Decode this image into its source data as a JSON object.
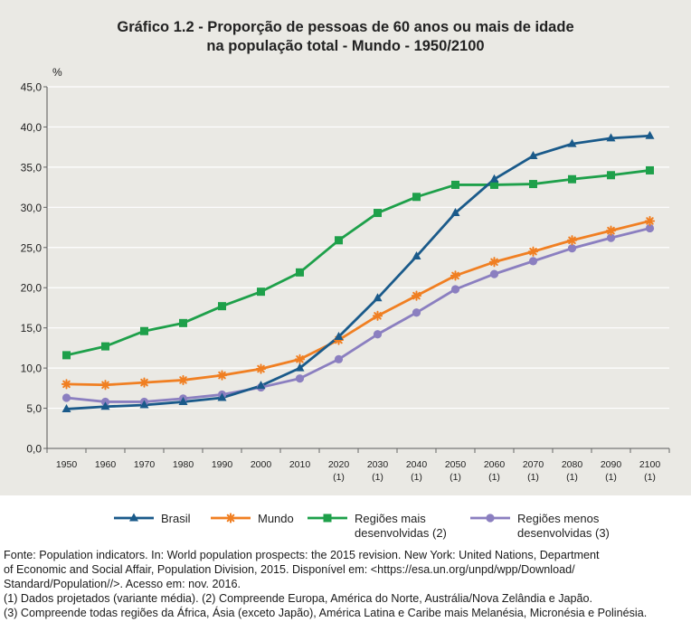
{
  "chart_data": {
    "type": "line",
    "title_lines": [
      "Gráfico 1.2 - Proporção de pessoas de 60 anos ou mais de idade",
      "na população total - Mundo - 1950/2100"
    ],
    "ylabel": "%",
    "ylim": [
      0,
      45
    ],
    "ytick_values": [
      0,
      5,
      10,
      15,
      20,
      25,
      30,
      35,
      40,
      45
    ],
    "ytick_labels": [
      "0,0",
      "5,0",
      "10,0",
      "15,0",
      "20,0",
      "25,0",
      "30,0",
      "35,0",
      "40,0",
      "45,0"
    ],
    "grid": true,
    "categories": [
      "1950",
      "1960",
      "1970",
      "1980",
      "1990",
      "2000",
      "2010",
      "2020",
      "2030",
      "2040",
      "2050",
      "2060",
      "2070",
      "2080",
      "2090",
      "2100"
    ],
    "category_footnotes": [
      "",
      "",
      "",
      "",
      "",
      "",
      "",
      "(1)",
      "(1)",
      "(1)",
      "(1)",
      "(1)",
      "(1)",
      "(1)",
      "(1)",
      "(1)"
    ],
    "series": [
      {
        "name": "Brasil",
        "marker": "triangle",
        "color": "#1a5a8a",
        "values": [
          4.9,
          5.2,
          5.4,
          5.8,
          6.3,
          7.8,
          10.0,
          13.9,
          18.7,
          23.9,
          29.3,
          33.5,
          36.4,
          37.9,
          38.6,
          38.9
        ]
      },
      {
        "name": "Mundo",
        "marker": "asterisk",
        "color": "#f07f22",
        "values": [
          8.0,
          7.9,
          8.2,
          8.5,
          9.1,
          9.9,
          11.1,
          13.5,
          16.5,
          19.0,
          21.5,
          23.2,
          24.5,
          25.9,
          27.1,
          28.3
        ]
      },
      {
        "name_lines": [
          "Regiões mais",
          "desenvolvidas (2)"
        ],
        "marker": "square",
        "color": "#1ea04a",
        "values": [
          11.6,
          12.7,
          14.6,
          15.6,
          17.7,
          19.5,
          21.9,
          25.9,
          29.3,
          31.3,
          32.8,
          32.8,
          32.9,
          33.5,
          34.0,
          34.6
        ]
      },
      {
        "name_lines": [
          "Regiões menos",
          "desenvolvidas (3)"
        ],
        "marker": "circle",
        "color": "#8b7fc0",
        "values": [
          6.3,
          5.8,
          5.8,
          6.2,
          6.7,
          7.6,
          8.7,
          11.1,
          14.2,
          16.9,
          19.8,
          21.7,
          23.3,
          24.9,
          26.2,
          27.4
        ]
      }
    ],
    "legend_position": "bottom"
  },
  "notes": [
    "Fonte: Population indicators. In: World population prospects: the 2015 revision. New York: United Nations, Department",
    "of Economic and Social Affair, Population Division, 2015. Disponível em: <https://esa.un.org/unpd/wpp/Download/",
    "Standard/Population//>. Acesso em: nov. 2016.",
    "(1) Dados projetados (variante média). (2) Compreende Europa, América do Norte, Austrália/Nova Zelândia e Japão.",
    "(3) Compreende todas regiões da África, Ásia (exceto Japão), América Latina e Caribe mais Melanésia, Micronésia e Polinésia."
  ]
}
